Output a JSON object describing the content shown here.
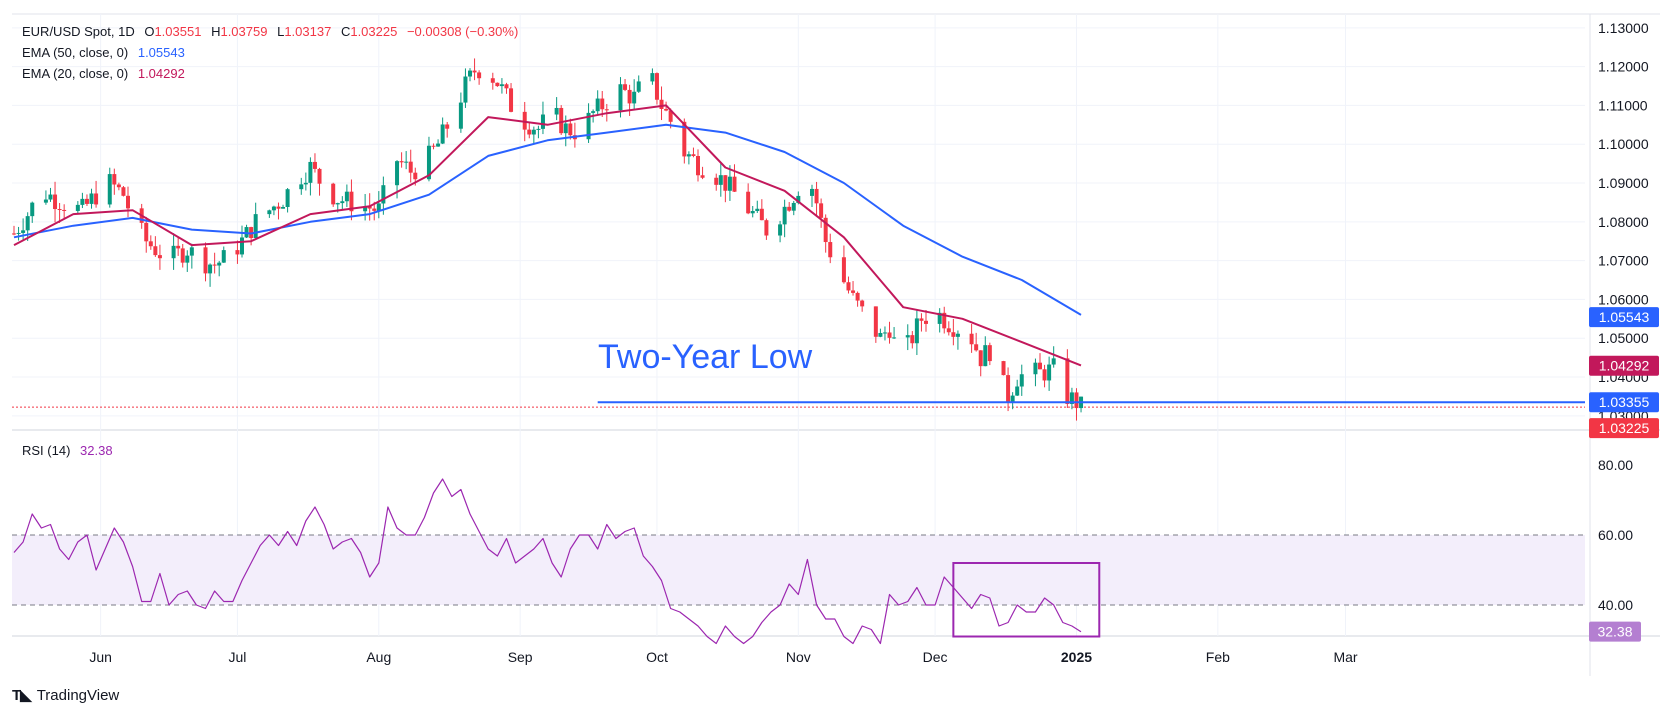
{
  "header": {
    "symbol": "EUR/USD Spot, 1D",
    "open_label": "O",
    "open": "1.03551",
    "high_label": "H",
    "high": "1.03759",
    "low_label": "L",
    "low": "1.03137",
    "close_label": "C",
    "close": "1.03225",
    "change": "−0.00308 (−0.30%)"
  },
  "indicators": {
    "ema50_label": "EMA (50, close, 0)",
    "ema50_value": "1.05543",
    "ema20_label": "EMA (20, close, 0)",
    "ema20_value": "1.04292",
    "rsi_label": "RSI (14)",
    "rsi_value": "32.38"
  },
  "annotation": "Two-Year Low",
  "footer": {
    "brand": "TradingView"
  },
  "colors": {
    "up": "#089981",
    "down": "#f23645",
    "ema50": "#2962ff",
    "ema20": "#c2185b",
    "rsi": "#9c27b0",
    "support": "#2962ff",
    "rsi_band": "#f3eefb"
  },
  "chart_data": [
    {
      "type": "candlestick",
      "title": "EUR/USD Spot, 1D",
      "x_labels": [
        "Jun",
        "Jul",
        "Aug",
        "Sep",
        "Oct",
        "Nov",
        "Dec",
        "2025",
        "Feb",
        "Mar"
      ],
      "x_label_days": [
        19,
        49,
        80,
        111,
        141,
        172,
        202,
        233,
        264,
        292
      ],
      "ylim": [
        1.0275,
        1.1315
      ],
      "y_ticks": [
        "1.13000",
        "1.12000",
        "1.11000",
        "1.10000",
        "1.09000",
        "1.08000",
        "1.07000",
        "1.06000",
        "1.05000",
        "1.04000",
        "1.03000"
      ],
      "price_badges": [
        {
          "label": "1.05543",
          "color": "#2962ff"
        },
        {
          "label": "1.04292",
          "color": "#c2185b"
        },
        {
          "label": "1.03355",
          "color": "#2962ff"
        },
        {
          "label": "1.03225",
          "color": "#f23645"
        }
      ],
      "support_level": 1.0335,
      "close_line": 1.03225,
      "close_path": [
        [
          0,
          1.077
        ],
        [
          3,
          1.082
        ],
        [
          6,
          1.088
        ],
        [
          9,
          1.086
        ],
        [
          12,
          1.084
        ],
        [
          15,
          1.083
        ],
        [
          18,
          1.087
        ],
        [
          21,
          1.09
        ],
        [
          24,
          1.087
        ],
        [
          26,
          1.081
        ],
        [
          29,
          1.075
        ],
        [
          32,
          1.072
        ],
        [
          35,
          1.071
        ],
        [
          38,
          1.073
        ],
        [
          41,
          1.07
        ],
        [
          44,
          1.069
        ],
        [
          47,
          1.071
        ],
        [
          50,
          1.075
        ],
        [
          53,
          1.08
        ],
        [
          56,
          1.083
        ],
        [
          59,
          1.086
        ],
        [
          62,
          1.091
        ],
        [
          65,
          1.094
        ],
        [
          68,
          1.089
        ],
        [
          71,
          1.086
        ],
        [
          74,
          1.085
        ],
        [
          77,
          1.084
        ],
        [
          80,
          1.083
        ],
        [
          82,
          1.09
        ],
        [
          84,
          1.096
        ],
        [
          87,
          1.093
        ],
        [
          90,
          1.095
        ],
        [
          93,
          1.1
        ],
        [
          96,
          1.107
        ],
        [
          99,
          1.115
        ],
        [
          101,
          1.119
        ],
        [
          103,
          1.12
        ],
        [
          106,
          1.116
        ],
        [
          109,
          1.11
        ],
        [
          112,
          1.106
        ],
        [
          115,
          1.104
        ],
        [
          118,
          1.108
        ],
        [
          121,
          1.104
        ],
        [
          124,
          1.103
        ],
        [
          127,
          1.108
        ],
        [
          130,
          1.111
        ],
        [
          133,
          1.114
        ],
        [
          136,
          1.112
        ],
        [
          138,
          1.116
        ],
        [
          140,
          1.116
        ],
        [
          142,
          1.11
        ],
        [
          144,
          1.106
        ],
        [
          147,
          1.098
        ],
        [
          150,
          1.095
        ],
        [
          153,
          1.093
        ],
        [
          156,
          1.09
        ],
        [
          159,
          1.086
        ],
        [
          162,
          1.082
        ],
        [
          165,
          1.078
        ],
        [
          168,
          1.082
        ],
        [
          171,
          1.087
        ],
        [
          173,
          1.091
        ],
        [
          174,
          1.093
        ],
        [
          176,
          1.085
        ],
        [
          178,
          1.075
        ],
        [
          181,
          1.067
        ],
        [
          184,
          1.06
        ],
        [
          187,
          1.055
        ],
        [
          190,
          1.05
        ],
        [
          192,
          1.053
        ],
        [
          194,
          1.045
        ],
        [
          196,
          1.048
        ],
        [
          199,
          1.055
        ],
        [
          202,
          1.057
        ],
        [
          205,
          1.054
        ],
        [
          208,
          1.052
        ],
        [
          210,
          1.05
        ],
        [
          212,
          1.045
        ],
        [
          215,
          1.048
        ],
        [
          216,
          1.04
        ],
        [
          218,
          1.035
        ],
        [
          220,
          1.04
        ],
        [
          223,
          1.041
        ],
        [
          225,
          1.041
        ],
        [
          228,
          1.042
        ],
        [
          230,
          1.038
        ],
        [
          231,
          1.035
        ],
        [
          233,
          1.0335
        ],
        [
          234,
          1.03225
        ]
      ],
      "ema50_path": [
        [
          0,
          1.076
        ],
        [
          13,
          1.079
        ],
        [
          26,
          1.081
        ],
        [
          39,
          1.078
        ],
        [
          52,
          1.077
        ],
        [
          65,
          1.08
        ],
        [
          78,
          1.082
        ],
        [
          91,
          1.087
        ],
        [
          104,
          1.097
        ],
        [
          117,
          1.101
        ],
        [
          130,
          1.103
        ],
        [
          143,
          1.105
        ],
        [
          156,
          1.103
        ],
        [
          169,
          1.098
        ],
        [
          182,
          1.09
        ],
        [
          195,
          1.079
        ],
        [
          208,
          1.071
        ],
        [
          221,
          1.065
        ],
        [
          234,
          1.056
        ]
      ],
      "ema20_path": [
        [
          0,
          1.074
        ],
        [
          13,
          1.082
        ],
        [
          26,
          1.083
        ],
        [
          39,
          1.074
        ],
        [
          52,
          1.075
        ],
        [
          65,
          1.082
        ],
        [
          78,
          1.084
        ],
        [
          91,
          1.092
        ],
        [
          104,
          1.107
        ],
        [
          117,
          1.105
        ],
        [
          130,
          1.108
        ],
        [
          143,
          1.11
        ],
        [
          156,
          1.094
        ],
        [
          169,
          1.088
        ],
        [
          182,
          1.076
        ],
        [
          195,
          1.058
        ],
        [
          208,
          1.055
        ],
        [
          221,
          1.049
        ],
        [
          234,
          1.043
        ]
      ]
    },
    {
      "type": "line",
      "title": "RSI (14)",
      "ylim": [
        22,
        82
      ],
      "y_ticks": [
        "80.00",
        "60.00",
        "40.00"
      ],
      "overbought": 60,
      "oversold": 40,
      "last_label": "32.38",
      "highlight_box": {
        "day_from": 206,
        "day_to": 238,
        "value_from": 31,
        "value_to": 52
      },
      "series": [
        {
          "values": [
            [
              0,
              55
            ],
            [
              2,
              58
            ],
            [
              4,
              66
            ],
            [
              6,
              62
            ],
            [
              8,
              63
            ],
            [
              10,
              56
            ],
            [
              12,
              53
            ],
            [
              14,
              58
            ],
            [
              16,
              60
            ],
            [
              18,
              50
            ],
            [
              20,
              56
            ],
            [
              22,
              62
            ],
            [
              24,
              58
            ],
            [
              26,
              51
            ],
            [
              28,
              41
            ],
            [
              30,
              41
            ],
            [
              32,
              49
            ],
            [
              34,
              40
            ],
            [
              36,
              43
            ],
            [
              38,
              44
            ],
            [
              40,
              40
            ],
            [
              42,
              39
            ],
            [
              44,
              44
            ],
            [
              46,
              41
            ],
            [
              48,
              41
            ],
            [
              50,
              47
            ],
            [
              52,
              52
            ],
            [
              54,
              57
            ],
            [
              56,
              60
            ],
            [
              58,
              57
            ],
            [
              60,
              61
            ],
            [
              62,
              57
            ],
            [
              64,
              64
            ],
            [
              66,
              68
            ],
            [
              68,
              63
            ],
            [
              70,
              56
            ],
            [
              72,
              58
            ],
            [
              74,
              59
            ],
            [
              76,
              55
            ],
            [
              78,
              48
            ],
            [
              80,
              52
            ],
            [
              82,
              68
            ],
            [
              84,
              62
            ],
            [
              86,
              60
            ],
            [
              88,
              60
            ],
            [
              90,
              65
            ],
            [
              92,
              72
            ],
            [
              94,
              76
            ],
            [
              96,
              71
            ],
            [
              98,
              73
            ],
            [
              100,
              66
            ],
            [
              102,
              61
            ],
            [
              104,
              56
            ],
            [
              106,
              54
            ],
            [
              108,
              59
            ],
            [
              110,
              52
            ],
            [
              112,
              54
            ],
            [
              114,
              56
            ],
            [
              116,
              59
            ],
            [
              118,
              52
            ],
            [
              120,
              48
            ],
            [
              122,
              56
            ],
            [
              124,
              60
            ],
            [
              126,
              60
            ],
            [
              128,
              56
            ],
            [
              130,
              63
            ],
            [
              132,
              59
            ],
            [
              134,
              61
            ],
            [
              136,
              62
            ],
            [
              138,
              54
            ],
            [
              140,
              51
            ],
            [
              142,
              47
            ],
            [
              144,
              39
            ],
            [
              146,
              38
            ],
            [
              148,
              36
            ],
            [
              150,
              34
            ],
            [
              152,
              31
            ],
            [
              154,
              29
            ],
            [
              156,
              34
            ],
            [
              158,
              31
            ],
            [
              160,
              29
            ],
            [
              162,
              31
            ],
            [
              164,
              35
            ],
            [
              166,
              38
            ],
            [
              168,
              40
            ],
            [
              170,
              46
            ],
            [
              172,
              43
            ],
            [
              174,
              53
            ],
            [
              176,
              40
            ],
            [
              178,
              36
            ],
            [
              180,
              36
            ],
            [
              182,
              31
            ],
            [
              184,
              29
            ],
            [
              186,
              34
            ],
            [
              188,
              33
            ],
            [
              190,
              29
            ],
            [
              192,
              43
            ],
            [
              194,
              40
            ],
            [
              196,
              41
            ],
            [
              198,
              45
            ],
            [
              200,
              40
            ],
            [
              202,
              40
            ],
            [
              204,
              48
            ],
            [
              206,
              45
            ],
            [
              208,
              42
            ],
            [
              210,
              39
            ],
            [
              212,
              43
            ],
            [
              214,
              42
            ],
            [
              216,
              34
            ],
            [
              218,
              35
            ],
            [
              220,
              40
            ],
            [
              222,
              38
            ],
            [
              224,
              38
            ],
            [
              226,
              42
            ],
            [
              228,
              40
            ],
            [
              230,
              35
            ],
            [
              232,
              34
            ],
            [
              234,
              32.38
            ]
          ]
        }
      ]
    }
  ]
}
